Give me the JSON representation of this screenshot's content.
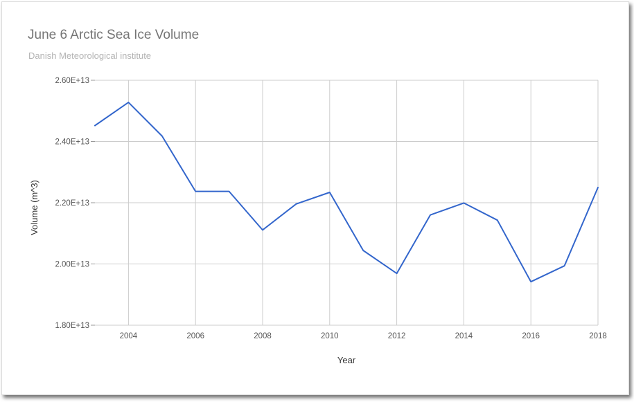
{
  "chart_data": {
    "type": "line",
    "title": "June 6 Arctic Sea Ice Volume",
    "subtitle": "Danish Meteorological institute",
    "xlabel": "Year",
    "ylabel": "Volume (m^3)",
    "xlim": [
      2003,
      2018
    ],
    "ylim": [
      18000000000000,
      26000000000000
    ],
    "grid": true,
    "x_ticks": [
      "2004",
      "2006",
      "2008",
      "2010",
      "2012",
      "2014",
      "2016",
      "2018"
    ],
    "y_ticks": [
      "1.80E+13",
      "2.00E+13",
      "2.20E+13",
      "2.40E+13",
      "2.60E+13"
    ],
    "series": [
      {
        "color": "#3366cc",
        "x": [
          2003,
          2004,
          2005,
          2006,
          2007,
          2008,
          2009,
          2010,
          2011,
          2012,
          2013,
          2014,
          2015,
          2016,
          2017,
          2018
        ],
        "values": [
          24520000000000,
          25280000000000,
          24180000000000,
          22370000000000,
          22370000000000,
          21110000000000,
          21960000000000,
          22340000000000,
          20440000000000,
          19690000000000,
          21600000000000,
          21990000000000,
          21430000000000,
          19420000000000,
          19940000000000,
          22500000000000
        ]
      }
    ]
  }
}
